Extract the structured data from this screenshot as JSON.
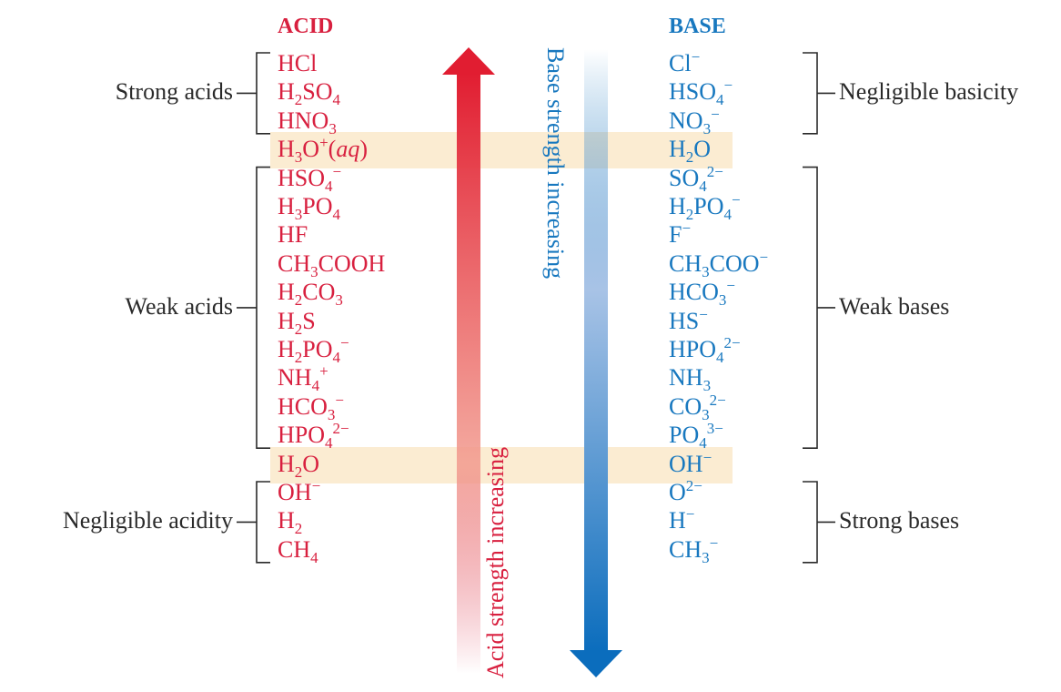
{
  "headers": {
    "acid": "ACID",
    "base": "BASE"
  },
  "arrows": {
    "acid_label": "Acid strength increasing",
    "base_label": "Base strength increasing"
  },
  "colors": {
    "acid": "#d8203f",
    "base": "#1878bf",
    "highlight": "#fbecd2",
    "bracket": "#2a2a2a"
  },
  "rows": [
    {
      "acid": "HCl",
      "acid_html": "HCl",
      "base": "Cl⁻",
      "base_html": "Cl<sup>−</sup>",
      "highlight": false
    },
    {
      "acid": "H₂SO₄",
      "acid_html": "H<sub>2</sub>SO<sub>4</sub>",
      "base": "HSO₄⁻",
      "base_html": "HSO<sub>4</sub><sup>−</sup>",
      "highlight": false
    },
    {
      "acid": "HNO₃",
      "acid_html": "HNO<sub>3</sub>",
      "base": "NO₃⁻",
      "base_html": "NO<sub>3</sub><sup>−</sup>",
      "highlight": false
    },
    {
      "acid": "H₃O⁺(aq)",
      "acid_html": "H<sub>3</sub>O<sup>+</sup>(<i>aq</i>)",
      "base": "H₂O",
      "base_html": "H<sub>2</sub>O",
      "highlight": true
    },
    {
      "acid": "HSO₄⁻",
      "acid_html": "HSO<sub>4</sub><sup>−</sup>",
      "base": "SO₄²⁻",
      "base_html": "SO<sub>4</sub><sup>2−</sup>",
      "highlight": false
    },
    {
      "acid": "H₃PO₄",
      "acid_html": "H<sub>3</sub>PO<sub>4</sub>",
      "base": "H₂PO₄⁻",
      "base_html": "H<sub>2</sub>PO<sub>4</sub><sup>−</sup>",
      "highlight": false
    },
    {
      "acid": "HF",
      "acid_html": "HF",
      "base": "F⁻",
      "base_html": "F<sup>−</sup>",
      "highlight": false
    },
    {
      "acid": "CH₃COOH",
      "acid_html": "CH<sub>3</sub>COOH",
      "base": "CH₃COO⁻",
      "base_html": "CH<sub>3</sub>COO<sup>−</sup>",
      "highlight": false
    },
    {
      "acid": "H₂CO₃",
      "acid_html": "H<sub>2</sub>CO<sub>3</sub>",
      "base": "HCO₃⁻",
      "base_html": "HCO<sub>3</sub><sup>−</sup>",
      "highlight": false
    },
    {
      "acid": "H₂S",
      "acid_html": "H<sub>2</sub>S",
      "base": "HS⁻",
      "base_html": "HS<sup>−</sup>",
      "highlight": false
    },
    {
      "acid": "H₂PO₄⁻",
      "acid_html": "H<sub>2</sub>PO<sub>4</sub><sup>−</sup>",
      "base": "HPO₄²⁻",
      "base_html": "HPO<sub>4</sub><sup>2−</sup>",
      "highlight": false
    },
    {
      "acid": "NH₄⁺",
      "acid_html": "NH<sub>4</sub><sup>+</sup>",
      "base": "NH₃",
      "base_html": "NH<sub>3</sub>",
      "highlight": false
    },
    {
      "acid": "HCO₃⁻",
      "acid_html": "HCO<sub>3</sub><sup>−</sup>",
      "base": "CO₃²⁻",
      "base_html": "CO<sub>3</sub><sup>2−</sup>",
      "highlight": false
    },
    {
      "acid": "HPO₄²⁻",
      "acid_html": "HPO<sub>4</sub><sup>2−</sup>",
      "base": "PO₄³⁻",
      "base_html": "PO<sub>4</sub><sup>3−</sup>",
      "highlight": false
    },
    {
      "acid": "H₂O",
      "acid_html": "H<sub>2</sub>O",
      "base": "OH⁻",
      "base_html": "OH<sup>−</sup>",
      "highlight": true
    },
    {
      "acid": "OH⁻",
      "acid_html": "OH<sup>−</sup>",
      "base": "O²⁻",
      "base_html": "O<sup>2−</sup>",
      "highlight": false
    },
    {
      "acid": "H₂",
      "acid_html": "H<sub>2</sub>",
      "base": "H⁻",
      "base_html": "H<sup>−</sup>",
      "highlight": false
    },
    {
      "acid": "CH₄",
      "acid_html": "CH<sub>4</sub>",
      "base": "CH₃⁻",
      "base_html": "CH<sub>3</sub><sup>−</sup>",
      "highlight": false
    }
  ],
  "groups": {
    "acid": [
      {
        "label": "Strong acids",
        "first_row": 0,
        "last_row": 2
      },
      {
        "label": "Weak acids",
        "first_row": 4,
        "last_row": 13
      },
      {
        "label": "Negligible acidity",
        "first_row": 15,
        "last_row": 17
      }
    ],
    "base": [
      {
        "label": "Negligible basicity",
        "first_row": 0,
        "last_row": 2
      },
      {
        "label": "Weak bases",
        "first_row": 4,
        "last_row": 13
      },
      {
        "label": "Strong bases",
        "first_row": 15,
        "last_row": 17
      }
    ]
  }
}
